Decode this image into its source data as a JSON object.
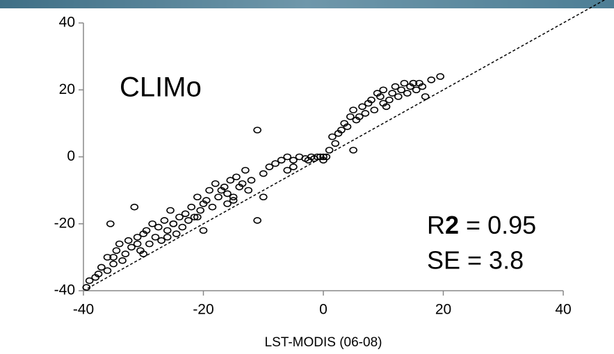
{
  "chart_data": {
    "type": "scatter",
    "annotations": {
      "model": "CLIMo",
      "r2": [
        "R",
        "2",
        "= 0.95"
      ],
      "se": "SE = 3.8"
    },
    "x_label": "LST-MODIS (06-08)",
    "xlim": [
      -40,
      40
    ],
    "xticks": [
      -40,
      -20,
      0,
      20,
      40
    ],
    "ylim": [
      -40,
      40
    ],
    "yticks": [
      -40,
      -20,
      0,
      20,
      40
    ],
    "color": "#000000",
    "x": [
      -39.5,
      -39,
      -38,
      -37.5,
      -37,
      -36,
      -35.5,
      -35,
      -34.5,
      -34,
      -33.5,
      -33,
      -32.5,
      -32,
      -31.5,
      -31,
      -30.5,
      -30,
      -29.5,
      -29,
      -28.5,
      -28,
      -27.5,
      -27,
      -26.5,
      -26,
      -25.5,
      -25,
      -24.5,
      -24,
      -23.5,
      -23,
      -22.5,
      -22,
      -21.5,
      -21,
      -20.5,
      -20,
      -19.5,
      -19,
      -18.5,
      -18,
      -17.5,
      -17,
      -16.5,
      -16,
      -15.5,
      -15,
      -14.5,
      -14,
      -13.5,
      -13,
      -12.5,
      -12,
      -11,
      -10,
      -9,
      -8,
      -7,
      -6,
      -5,
      -4,
      -3,
      -2.5,
      -2,
      -1.5,
      -1,
      -0.5,
      0,
      0.5,
      1,
      1.5,
      2,
      2.5,
      3,
      3.5,
      4,
      4.5,
      5,
      5.5,
      6,
      6.5,
      7,
      7.5,
      8,
      8.5,
      9,
      9.5,
      10,
      10.5,
      11,
      11.5,
      12,
      12.5,
      13,
      13.5,
      14,
      14.5,
      15,
      15.5,
      16,
      16.5,
      17,
      18,
      19.5,
      -35,
      -30,
      -25,
      -20,
      -15,
      -10,
      -5,
      0,
      5,
      10,
      15,
      -36,
      -31,
      -26,
      -21,
      -16,
      -11,
      -6
    ],
    "y": [
      -39,
      -37,
      -36,
      -35,
      -33,
      -34,
      -20,
      -30,
      -28,
      -26,
      -31,
      -29,
      -25,
      -27,
      -15,
      -24,
      -28,
      -23,
      -22,
      -26,
      -20,
      -24,
      -21,
      -25,
      -19,
      -22,
      -16,
      -20,
      -23,
      -18,
      -21,
      -17,
      -19,
      -15,
      -18,
      -12,
      -16,
      -14,
      -13,
      -10,
      -15,
      -8,
      -12,
      -10,
      -9,
      -11,
      -7,
      -13,
      -6,
      -9,
      -8,
      -4,
      -10,
      -7,
      8,
      -5,
      -3,
      -2,
      -1,
      0,
      -1,
      0,
      -0.5,
      -1,
      0,
      -0.5,
      0,
      0,
      -1,
      0,
      2,
      6,
      4,
      7,
      8,
      10,
      9,
      12,
      14,
      11,
      12,
      15,
      13,
      16,
      17,
      14,
      19,
      18,
      20,
      15,
      17,
      19,
      21,
      18,
      20,
      22,
      19,
      21,
      22,
      20,
      22,
      21,
      18,
      23,
      24,
      -32,
      -29,
      -20,
      -22,
      -12,
      -12,
      -3,
      0,
      2,
      16,
      22,
      -30,
      -26,
      -24,
      -18,
      -14,
      -19,
      -4
    ]
  }
}
